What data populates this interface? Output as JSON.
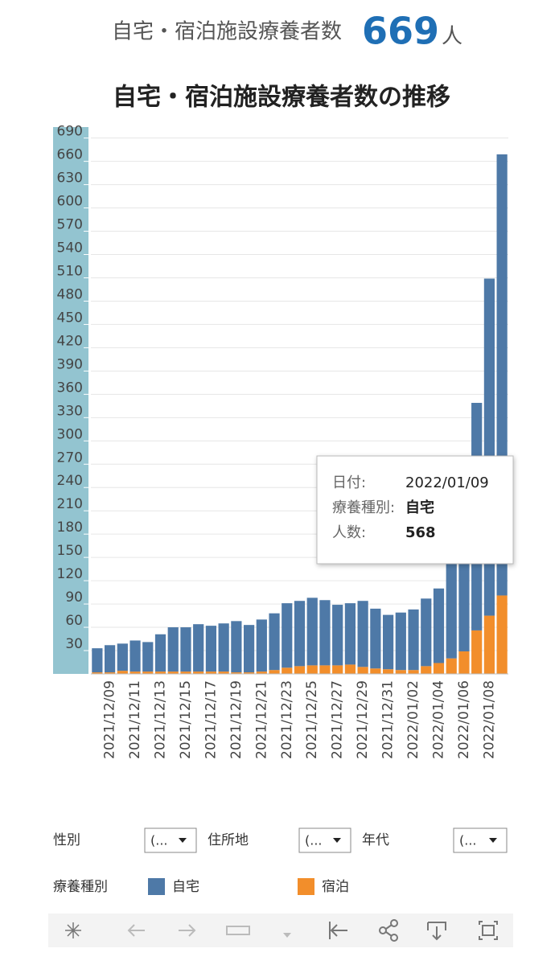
{
  "header": {
    "label": "自宅・宿泊施設療養者数",
    "value": 669,
    "unit": "人"
  },
  "chart_data": {
    "type": "bar",
    "stacked": true,
    "title": "自宅・宿泊施設療養者数の推移",
    "categories": [
      null,
      "2021/12/09",
      null,
      "2021/12/11",
      null,
      "2021/12/13",
      null,
      "2021/12/15",
      null,
      "2021/12/17",
      null,
      "2021/12/19",
      null,
      "2021/12/21",
      null,
      "2021/12/23",
      null,
      "2021/12/25",
      null,
      "2021/12/27",
      null,
      "2021/12/29",
      null,
      "2021/12/31",
      null,
      "2022/01/02",
      null,
      "2022/01/04",
      null,
      "2022/01/06",
      null,
      "2022/01/08",
      null
    ],
    "series": [
      {
        "name": "自宅",
        "color": "#4e79a7",
        "values": [
          31,
          35,
          35,
          40,
          38,
          48,
          57,
          57,
          61,
          59,
          62,
          66,
          61,
          67,
          73,
          83,
          84,
          87,
          84,
          78,
          79,
          85,
          77,
          70,
          74,
          78,
          87,
          96,
          140,
          211,
          293,
          434,
          568
        ]
      },
      {
        "name": "宿泊",
        "color": "#f28e2b",
        "values": [
          2,
          2,
          4,
          3,
          3,
          3,
          3,
          3,
          3,
          3,
          3,
          2,
          2,
          3,
          5,
          8,
          10,
          11,
          11,
          11,
          12,
          9,
          7,
          6,
          5,
          5,
          10,
          14,
          20,
          29,
          56,
          75,
          101
        ]
      }
    ],
    "ylim": [
      0,
      700
    ],
    "yticks": [
      30,
      60,
      90,
      120,
      150,
      180,
      210,
      240,
      270,
      300,
      330,
      360,
      390,
      420,
      450,
      480,
      510,
      540,
      570,
      600,
      630,
      660,
      690
    ],
    "grid": true
  },
  "tooltip": {
    "rows": [
      [
        "日付:",
        "2022/01/09"
      ],
      [
        "療養種別:",
        "自宅"
      ],
      [
        "人数:",
        568
      ]
    ]
  },
  "filters": [
    {
      "label": "性別",
      "value": "(..."
    },
    {
      "label": "住所地",
      "value": "(..."
    },
    {
      "label": "年代",
      "value": "(..."
    }
  ],
  "legend": {
    "title": "療養種別"
  }
}
